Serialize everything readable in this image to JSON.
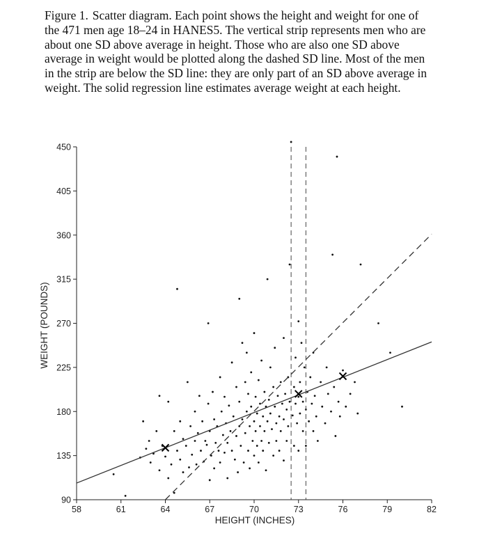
{
  "caption": {
    "label": "Figure 1.",
    "text": "Scatter diagram.  Each point shows the height and weight for one of the 471 men age 18–24 in HANES5. The vertical strip represents men who are about one SD above average in height. Those who are also one SD above average in weight would be plotted along the dashed SD line. Most of the men in the strip are below the SD line: they are only part of an SD above average in weight. The solid regression line estimates average weight at each height."
  },
  "chart_data": {
    "type": "scatter",
    "title": "",
    "xlabel": "HEIGHT (INCHES)",
    "ylabel": "WEIGHT (POUNDS)",
    "xlim": [
      58,
      82
    ],
    "ylim": [
      90,
      450
    ],
    "xticks": [
      58,
      61,
      64,
      67,
      70,
      73,
      76,
      79,
      82
    ],
    "yticks": [
      90,
      135,
      180,
      225,
      270,
      315,
      360,
      405,
      450
    ],
    "grid": false,
    "n_points": 471,
    "regression_line": {
      "style": "solid",
      "points": [
        [
          58,
          107
        ],
        [
          82,
          251
        ]
      ]
    },
    "sd_line": {
      "style": "dashed",
      "points": [
        [
          64,
          90
        ],
        [
          82,
          361
        ]
      ]
    },
    "strip": {
      "style": "dashed",
      "x_bounds": [
        72.5,
        73.5
      ]
    },
    "marked_points": [
      [
        64,
        143
      ],
      [
        73,
        198
      ],
      [
        76,
        216
      ]
    ],
    "points_note": "Approximate reconstruction of the visible scatter cloud.",
    "points": [
      [
        61.3,
        94
      ],
      [
        60.5,
        116
      ],
      [
        62.3,
        133
      ],
      [
        62.5,
        170
      ],
      [
        62.7,
        142
      ],
      [
        62.9,
        150
      ],
      [
        63.0,
        128
      ],
      [
        63.2,
        137
      ],
      [
        63.4,
        160
      ],
      [
        63.6,
        120
      ],
      [
        63.6,
        196
      ],
      [
        63.8,
        145
      ],
      [
        64.0,
        134
      ],
      [
        64.2,
        190
      ],
      [
        64.2,
        112
      ],
      [
        64.4,
        126
      ],
      [
        64.6,
        160
      ],
      [
        64.6,
        97
      ],
      [
        64.8,
        140
      ],
      [
        64.8,
        305
      ],
      [
        65.0,
        131
      ],
      [
        65.0,
        170
      ],
      [
        65.2,
        152
      ],
      [
        65.2,
        118
      ],
      [
        65.4,
        145
      ],
      [
        65.5,
        210
      ],
      [
        65.6,
        123
      ],
      [
        65.7,
        165
      ],
      [
        65.8,
        136
      ],
      [
        66.0,
        150
      ],
      [
        66.0,
        180
      ],
      [
        66.1,
        126
      ],
      [
        66.2,
        158
      ],
      [
        66.3,
        196
      ],
      [
        66.4,
        140
      ],
      [
        66.5,
        170
      ],
      [
        66.6,
        129
      ],
      [
        66.7,
        150
      ],
      [
        66.8,
        146
      ],
      [
        66.9,
        188
      ],
      [
        66.9,
        270
      ],
      [
        67.0,
        110
      ],
      [
        67.0,
        160
      ],
      [
        67.1,
        135
      ],
      [
        67.2,
        200
      ],
      [
        67.3,
        172
      ],
      [
        67.3,
        122
      ],
      [
        67.4,
        148
      ],
      [
        67.5,
        165
      ],
      [
        67.6,
        140
      ],
      [
        67.7,
        215
      ],
      [
        67.7,
        128
      ],
      [
        67.8,
        180
      ],
      [
        67.9,
        156
      ],
      [
        68.0,
        138
      ],
      [
        68.0,
        195
      ],
      [
        68.1,
        168
      ],
      [
        68.2,
        148
      ],
      [
        68.2,
        112
      ],
      [
        68.3,
        186
      ],
      [
        68.4,
        160
      ],
      [
        68.5,
        230
      ],
      [
        68.5,
        140
      ],
      [
        68.6,
        175
      ],
      [
        68.7,
        131
      ],
      [
        68.8,
        205
      ],
      [
        68.8,
        155
      ],
      [
        68.9,
        118
      ],
      [
        69.0,
        190
      ],
      [
        69.0,
        165
      ],
      [
        69.0,
        295
      ],
      [
        69.1,
        145
      ],
      [
        69.2,
        250
      ],
      [
        69.2,
        172
      ],
      [
        69.3,
        128
      ],
      [
        69.4,
        210
      ],
      [
        69.4,
        158
      ],
      [
        69.5,
        180
      ],
      [
        69.5,
        240
      ],
      [
        69.6,
        140
      ],
      [
        69.6,
        198
      ],
      [
        69.7,
        165
      ],
      [
        69.7,
        122
      ],
      [
        69.8,
        220
      ],
      [
        69.8,
        185
      ],
      [
        69.9,
        150
      ],
      [
        70.0,
        170
      ],
      [
        70.0,
        260
      ],
      [
        70.0,
        135
      ],
      [
        70.1,
        195
      ],
      [
        70.1,
        160
      ],
      [
        70.2,
        178
      ],
      [
        70.2,
        145
      ],
      [
        70.3,
        212
      ],
      [
        70.3,
        128
      ],
      [
        70.4,
        188
      ],
      [
        70.4,
        165
      ],
      [
        70.5,
        232
      ],
      [
        70.5,
        150
      ],
      [
        70.6,
        175
      ],
      [
        70.6,
        140
      ],
      [
        70.7,
        200
      ],
      [
        70.7,
        160
      ],
      [
        70.8,
        185
      ],
      [
        70.8,
        120
      ],
      [
        70.9,
        170
      ],
      [
        70.9,
        315
      ],
      [
        71.0,
        192
      ],
      [
        71.0,
        148
      ],
      [
        71.1,
        178
      ],
      [
        71.1,
        225
      ],
      [
        71.2,
        162
      ],
      [
        71.3,
        205
      ],
      [
        71.3,
        135
      ],
      [
        71.4,
        185
      ],
      [
        71.4,
        245
      ],
      [
        71.5,
        168
      ],
      [
        71.5,
        150
      ],
      [
        71.6,
        196
      ],
      [
        71.7,
        175
      ],
      [
        71.7,
        140
      ],
      [
        71.8,
        210
      ],
      [
        71.8,
        160
      ],
      [
        71.9,
        188
      ],
      [
        72.0,
        172
      ],
      [
        72.0,
        255
      ],
      [
        72.0,
        130
      ],
      [
        72.1,
        198
      ],
      [
        72.2,
        182
      ],
      [
        72.2,
        150
      ],
      [
        72.3,
        215
      ],
      [
        72.3,
        165
      ],
      [
        72.4,
        330
      ],
      [
        72.4,
        190
      ],
      [
        72.5,
        455
      ],
      [
        72.6,
        176
      ],
      [
        72.7,
        205
      ],
      [
        72.7,
        145
      ],
      [
        72.8,
        188
      ],
      [
        72.8,
        235
      ],
      [
        72.9,
        168
      ],
      [
        73.0,
        195
      ],
      [
        73.0,
        272
      ],
      [
        73.0,
        140
      ],
      [
        73.1,
        210
      ],
      [
        73.1,
        178
      ],
      [
        73.2,
        250
      ],
      [
        73.3,
        190
      ],
      [
        73.3,
        160
      ],
      [
        73.4,
        225
      ],
      [
        73.5,
        182
      ],
      [
        73.5,
        145
      ],
      [
        73.6,
        200
      ],
      [
        73.7,
        170
      ],
      [
        73.8,
        215
      ],
      [
        73.9,
        188
      ],
      [
        74.0,
        160
      ],
      [
        74.0,
        240
      ],
      [
        74.1,
        196
      ],
      [
        74.2,
        175
      ],
      [
        74.3,
        150
      ],
      [
        74.5,
        210
      ],
      [
        74.6,
        185
      ],
      [
        74.8,
        168
      ],
      [
        74.9,
        225
      ],
      [
        75.0,
        198
      ],
      [
        75.2,
        180
      ],
      [
        75.3,
        340
      ],
      [
        75.4,
        205
      ],
      [
        75.5,
        155
      ],
      [
        75.6,
        440
      ],
      [
        75.7,
        190
      ],
      [
        75.8,
        175
      ],
      [
        76.0,
        222
      ],
      [
        76.2,
        185
      ],
      [
        76.5,
        198
      ],
      [
        76.8,
        210
      ],
      [
        77.0,
        178
      ],
      [
        77.2,
        330
      ],
      [
        78.4,
        270
      ],
      [
        79.2,
        240
      ],
      [
        80.0,
        185
      ]
    ]
  }
}
